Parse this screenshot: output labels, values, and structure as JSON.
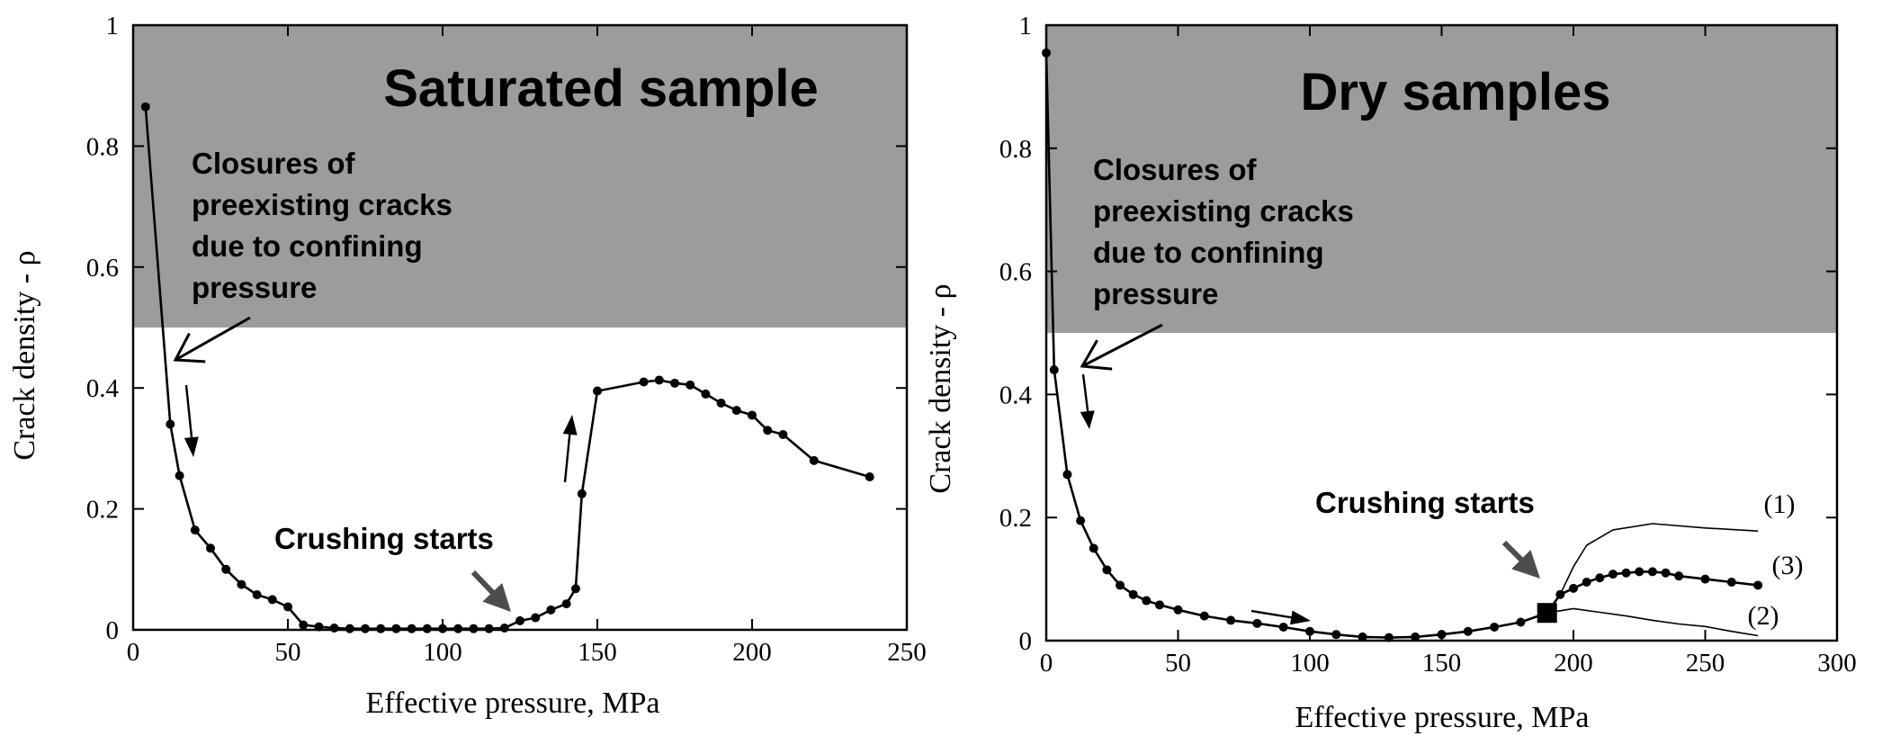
{
  "colors": {
    "shade": "#9c9c9c",
    "ink": "#000000",
    "annotation_arrow": "#4d4d4d",
    "lines": "#000000"
  },
  "chart_data": [
    {
      "type": "line",
      "title": "Saturated sample",
      "xlabel": "Effective pressure, MPa",
      "ylabel": "Crack density - ρ",
      "xlim": [
        0,
        250
      ],
      "ylim": [
        0,
        1
      ],
      "x_ticks": [
        "0",
        "50",
        "100",
        "150",
        "200",
        "250"
      ],
      "y_ticks": [
        "0",
        "0.2",
        "0.4",
        "0.6",
        "0.8",
        "1"
      ],
      "shaded_region": {
        "y_from": 0.5,
        "y_to": 1
      },
      "annotations": {
        "closure": [
          "Closures of",
          "preexisting cracks",
          "due to confining",
          "pressure"
        ],
        "crushing": "Crushing starts"
      },
      "series": [
        {
          "x": [
            4,
            12,
            15,
            20,
            25,
            30,
            35,
            40,
            45,
            50,
            55,
            60,
            65,
            70,
            75,
            80,
            85,
            90,
            95,
            100,
            105,
            110,
            115,
            120,
            125,
            130,
            135,
            140,
            143,
            145,
            150,
            165,
            170,
            175,
            180,
            185,
            190,
            195,
            200,
            205,
            210,
            220,
            238
          ],
          "y": [
            0.865,
            0.34,
            0.255,
            0.165,
            0.135,
            0.1,
            0.075,
            0.058,
            0.05,
            0.038,
            0.008,
            0.005,
            0.003,
            0.002,
            0.002,
            0.002,
            0.002,
            0.002,
            0.002,
            0.002,
            0.002,
            0.002,
            0.002,
            0.003,
            0.015,
            0.02,
            0.033,
            0.043,
            0.068,
            0.225,
            0.395,
            0.41,
            0.413,
            0.408,
            0.405,
            0.39,
            0.375,
            0.363,
            0.355,
            0.33,
            0.323,
            0.28,
            0.253
          ]
        }
      ]
    },
    {
      "type": "line",
      "title": "Dry samples",
      "xlabel": "Effective pressure, MPa",
      "ylabel": "Crack density - ρ",
      "xlim": [
        0,
        300
      ],
      "ylim": [
        0,
        1
      ],
      "x_ticks": [
        "0",
        "50",
        "100",
        "150",
        "200",
        "250",
        "300"
      ],
      "y_ticks": [
        "0",
        "0.2",
        "0.4",
        "0.6",
        "0.8",
        "1"
      ],
      "shaded_region": {
        "y_from": 0.5,
        "y_to": 1
      },
      "annotations": {
        "closure": [
          "Closures of",
          "preexisting cracks",
          "due to confining",
          "pressure"
        ],
        "crushing": "Crushing starts",
        "curve_labels": [
          "(1)",
          "(2)",
          "(3)"
        ]
      },
      "marker_square": {
        "x": 190,
        "y": 0.045
      },
      "series": [
        {
          "x": [
            0,
            3,
            8,
            13,
            18,
            23,
            28,
            33,
            38,
            43,
            50,
            60,
            70,
            80,
            90,
            100,
            110,
            120,
            130,
            140,
            150,
            160,
            170,
            180,
            190
          ],
          "y": [
            0.955,
            0.44,
            0.27,
            0.195,
            0.15,
            0.115,
            0.09,
            0.075,
            0.065,
            0.058,
            0.05,
            0.04,
            0.033,
            0.028,
            0.022,
            0.015,
            0.01,
            0.006,
            0.005,
            0.006,
            0.01,
            0.015,
            0.022,
            0.03,
            0.045
          ]
        },
        {
          "name": "(1)",
          "x": [
            190,
            195,
            200,
            205,
            215,
            230,
            250,
            270
          ],
          "y": [
            0.045,
            0.075,
            0.12,
            0.155,
            0.18,
            0.19,
            0.183,
            0.178
          ]
        },
        {
          "name": "(3)",
          "x": [
            190,
            195,
            200,
            205,
            210,
            215,
            220,
            225,
            230,
            235,
            240,
            250,
            260,
            270
          ],
          "y": [
            0.045,
            0.075,
            0.085,
            0.095,
            0.102,
            0.108,
            0.11,
            0.112,
            0.112,
            0.11,
            0.105,
            0.1,
            0.095,
            0.09
          ]
        },
        {
          "name": "(2)",
          "x": [
            190,
            200,
            210,
            220,
            230,
            240,
            250,
            260,
            270
          ],
          "y": [
            0.045,
            0.052,
            0.046,
            0.04,
            0.033,
            0.027,
            0.023,
            0.015,
            0.008
          ]
        }
      ]
    }
  ]
}
